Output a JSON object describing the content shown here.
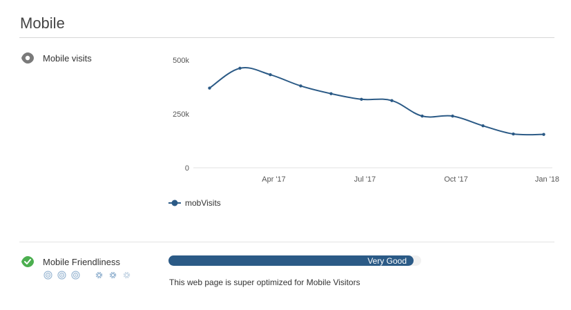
{
  "section": {
    "title": "Mobile"
  },
  "visits": {
    "label": "Mobile visits",
    "icon": "eye-icon"
  },
  "chart_data": {
    "type": "line",
    "x": [
      "Feb '17",
      "Mar '17",
      "Apr '17",
      "May '17",
      "Jun '17",
      "Jul '17",
      "Aug '17",
      "Sep '17",
      "Oct '17",
      "Nov '17",
      "Dec '17",
      "Jan '18"
    ],
    "series": [
      {
        "name": "mobVisits",
        "values": [
          370000,
          462000,
          432000,
          380000,
          344000,
          318000,
          312000,
          240000,
          240000,
          195000,
          157000,
          155000
        ],
        "color": "#2b5a86"
      }
    ],
    "y_ticks": [
      "0",
      "250k",
      "500k"
    ],
    "x_ticks": [
      "Apr '17",
      "Jul '17",
      "Oct '17",
      "Jan '18"
    ],
    "x_tick_indices": [
      2,
      5,
      8,
      11
    ],
    "ylim": [
      0,
      500000
    ],
    "legend_position": "bottom-left"
  },
  "friendliness": {
    "label": "Mobile Friendliness",
    "icon": "check-badge-icon",
    "rating_label": "Very Good",
    "progress": 0.97,
    "description": "This web page is super optimized for Mobile Visitors",
    "bar_color": "#2b5a86",
    "indicator_icons": [
      "target-icon",
      "target-icon",
      "target-icon",
      "gear-icon",
      "gear-icon",
      "gear-outline-icon"
    ]
  }
}
